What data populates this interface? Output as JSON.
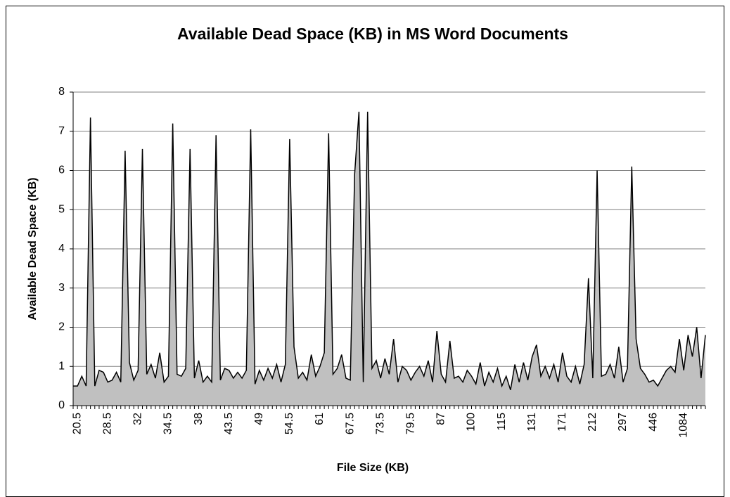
{
  "chart_data": {
    "type": "area",
    "title": "Available Dead Space (KB) in MS Word Documents",
    "xlabel": "File Size (KB)",
    "ylabel": "Available Dead Space (KB)",
    "categories": [
      null,
      "20.5",
      null,
      null,
      null,
      null,
      null,
      null,
      "28.5",
      null,
      null,
      null,
      null,
      null,
      null,
      "32",
      null,
      null,
      null,
      null,
      null,
      null,
      "34.5",
      null,
      null,
      null,
      null,
      null,
      null,
      "38",
      null,
      null,
      null,
      null,
      null,
      null,
      "43.5",
      null,
      null,
      null,
      null,
      null,
      null,
      "49",
      null,
      null,
      null,
      null,
      null,
      null,
      "54.5",
      null,
      null,
      null,
      null,
      null,
      null,
      "61",
      null,
      null,
      null,
      null,
      null,
      null,
      "67.5",
      null,
      null,
      null,
      null,
      null,
      null,
      "73.5",
      null,
      null,
      null,
      null,
      null,
      null,
      "79.5",
      null,
      null,
      null,
      null,
      null,
      null,
      "87",
      null,
      null,
      null,
      null,
      null,
      null,
      "100",
      null,
      null,
      null,
      null,
      null,
      null,
      "115",
      null,
      null,
      null,
      null,
      null,
      null,
      "131",
      null,
      null,
      null,
      null,
      null,
      null,
      "171",
      null,
      null,
      null,
      null,
      null,
      null,
      "212",
      null,
      null,
      null,
      null,
      null,
      null,
      "297",
      null,
      null,
      null,
      null,
      null,
      null,
      "446",
      null,
      null,
      null,
      null,
      null,
      null,
      "1084",
      null,
      null,
      null,
      null,
      null
    ],
    "values": [
      0.5,
      0.5,
      0.75,
      0.5,
      7.35,
      0.5,
      0.9,
      0.85,
      0.6,
      0.65,
      0.85,
      0.6,
      6.5,
      1.1,
      0.65,
      0.9,
      6.55,
      0.8,
      1.05,
      0.7,
      1.35,
      0.6,
      0.75,
      7.2,
      0.8,
      0.75,
      0.95,
      6.55,
      0.7,
      1.15,
      0.6,
      0.75,
      0.6,
      6.9,
      0.65,
      0.95,
      0.9,
      0.7,
      0.85,
      0.7,
      0.9,
      7.05,
      0.55,
      0.9,
      0.65,
      0.95,
      0.7,
      1.05,
      0.6,
      1.05,
      6.8,
      1.5,
      0.7,
      0.85,
      0.65,
      1.3,
      0.75,
      1.0,
      1.35,
      6.95,
      0.8,
      0.95,
      1.3,
      0.7,
      0.65,
      5.9,
      7.5,
      0.6,
      7.5,
      0.95,
      1.15,
      0.7,
      1.2,
      0.8,
      1.7,
      0.6,
      1.0,
      0.9,
      0.65,
      0.85,
      1.0,
      0.75,
      1.15,
      0.6,
      1.9,
      0.8,
      0.6,
      1.65,
      0.7,
      0.75,
      0.6,
      0.9,
      0.75,
      0.55,
      1.1,
      0.5,
      0.85,
      0.6,
      0.95,
      0.5,
      0.75,
      0.4,
      1.05,
      0.6,
      1.1,
      0.65,
      1.25,
      1.55,
      0.75,
      1.0,
      0.7,
      1.05,
      0.6,
      1.35,
      0.75,
      0.6,
      1.0,
      0.55,
      1.05,
      3.25,
      0.7,
      6.0,
      0.75,
      0.8,
      1.05,
      0.7,
      1.5,
      0.6,
      0.95,
      6.1,
      1.7,
      0.95,
      0.8,
      0.6,
      0.65,
      0.5,
      0.7,
      0.9,
      1.0,
      0.85,
      1.7,
      0.9,
      1.8,
      1.25,
      2.0,
      0.7,
      1.8
    ],
    "color": "#c0c0c0",
    "line_color": "#000000",
    "ylim": [
      0,
      8
    ],
    "yticks": [
      0,
      1,
      2,
      3,
      4,
      5,
      6,
      7,
      8
    ],
    "grid": true
  }
}
